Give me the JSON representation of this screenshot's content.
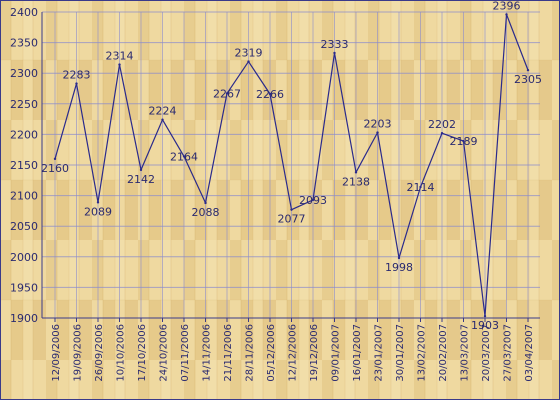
{
  "chart_data": {
    "type": "line",
    "title": "",
    "xlabel": "",
    "ylabel": "",
    "ylim": [
      1900,
      2400
    ],
    "y_ticks": [
      1900,
      1950,
      2000,
      2050,
      2100,
      2150,
      2200,
      2250,
      2300,
      2350,
      2400
    ],
    "x_tick_labels": [
      "12/09/2006",
      "19/09/2006",
      "26/09/2006",
      "10/10/2006",
      "17/10/2006",
      "24/10/2006",
      "07/11/2006",
      "14/11/2006",
      "21/11/2006",
      "28/11/2006",
      "05/12/2006",
      "12/12/2006",
      "19/12/2006",
      "09/01/2007",
      "16/01/2007",
      "23/01/2007",
      "30/01/2007",
      "13/02/2007",
      "20/02/2007",
      "13/03/2007",
      "20/03/2007",
      "27/03/2007",
      "03/04/2007"
    ],
    "grid": true,
    "colors": {
      "line": "#2a2a8c",
      "grid": "#8c8ccc",
      "border": "#3a3a8a",
      "text": "#2a2a70",
      "background_light": "#f0dca0",
      "background_dark": "#d9bb76"
    },
    "series": [
      {
        "values": [
          2160,
          2283,
          2089,
          2314,
          2142,
          2224,
          2164,
          2088,
          2267,
          2319,
          2266,
          2077,
          2093,
          2333,
          2138,
          2203,
          1998,
          2114,
          2202,
          2189,
          1903,
          2396,
          2305
        ]
      }
    ]
  }
}
